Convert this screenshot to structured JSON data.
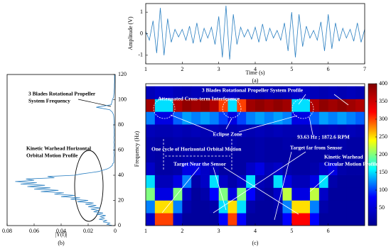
{
  "chart_data": [
    {
      "type": "line",
      "caption": "(a)",
      "xlabel": "Time (s)",
      "ylabel": "Amplitude (V)",
      "color": "#2a7fc1",
      "x": [
        1.0,
        1.1,
        1.2,
        1.3,
        1.4,
        1.5,
        1.6,
        1.7,
        1.8,
        1.9,
        2.0,
        2.1,
        2.2,
        2.3,
        2.4,
        2.5,
        2.6,
        2.7,
        2.8,
        2.9,
        3.0,
        3.1,
        3.2,
        3.3,
        3.4,
        3.5,
        3.6,
        3.7,
        3.8,
        3.9,
        4.0,
        4.1,
        4.2,
        4.3,
        4.4,
        4.5,
        4.6,
        4.7,
        4.8,
        4.9,
        5.0,
        5.1,
        5.2,
        5.3,
        5.4,
        5.5,
        5.6,
        5.7,
        5.8,
        5.9,
        6.0,
        6.1,
        6.2,
        6.3,
        6.4,
        6.5,
        6.6,
        6.7,
        6.8,
        6.9,
        7.0
      ],
      "values": [
        0.1,
        -0.3,
        0.6,
        -0.9,
        1.2,
        -1.0,
        0.7,
        -0.4,
        0.2,
        -0.15,
        0.2,
        -0.3,
        0.35,
        -0.45,
        0.5,
        -0.4,
        0.25,
        -0.2,
        0.3,
        -0.5,
        0.8,
        -1.1,
        1.3,
        -1.2,
        0.9,
        -0.5,
        0.3,
        -0.15,
        0.2,
        -0.25,
        0.3,
        -0.4,
        0.45,
        -0.35,
        0.25,
        -0.2,
        0.15,
        -0.3,
        0.5,
        -0.8,
        1.0,
        -1.1,
        0.9,
        -0.6,
        0.35,
        -0.2,
        0.15,
        -0.3,
        0.55,
        -0.8,
        0.9,
        -0.7,
        0.5,
        -0.35,
        0.25,
        -0.2,
        0.2,
        -0.35,
        0.5,
        -0.4,
        0.2
      ],
      "xlim": [
        1,
        7
      ],
      "xticks": [
        1,
        2,
        3,
        4,
        5,
        6,
        7
      ],
      "ylim": [
        -1.4,
        1.4
      ],
      "yticks": [
        -1,
        0,
        1
      ]
    },
    {
      "type": "line",
      "orientation": "horizontal",
      "caption": "(b)",
      "xlabel": "|Y(f)|",
      "ylabel": "Frequency (Hz)",
      "color": "#2a7fc1",
      "annotations": [
        "3 Blades Rotational Propeller",
        "System Frequency",
        "Kinetic Warhead Horizontal",
        "Orbital Motion Profile"
      ],
      "x": [
        0,
        1,
        2,
        3,
        4,
        5,
        6,
        7,
        8,
        9,
        10,
        11,
        12,
        13,
        14,
        15,
        16,
        17,
        18,
        19,
        20,
        21,
        22,
        23,
        24,
        25,
        26,
        27,
        28,
        29,
        30,
        31,
        32,
        33,
        34,
        35,
        36,
        37,
        38,
        39,
        40,
        41,
        42,
        43,
        44,
        45,
        46,
        47,
        48,
        49,
        50,
        52,
        54,
        56,
        58,
        60,
        62,
        64,
        66,
        68,
        70,
        72,
        74,
        76,
        78,
        80,
        82,
        84,
        86,
        88,
        90,
        92,
        94,
        96,
        98,
        100,
        102,
        104,
        106,
        108,
        110,
        112,
        114,
        116,
        118,
        120
      ],
      "values": [
        0.002,
        0.006,
        0.004,
        0.009,
        0.006,
        0.012,
        0.008,
        0.011,
        0.007,
        0.014,
        0.009,
        0.016,
        0.012,
        0.018,
        0.011,
        0.02,
        0.014,
        0.022,
        0.016,
        0.028,
        0.02,
        0.033,
        0.026,
        0.04,
        0.03,
        0.045,
        0.038,
        0.055,
        0.042,
        0.06,
        0.048,
        0.065,
        0.052,
        0.07,
        0.058,
        0.074,
        0.06,
        0.066,
        0.045,
        0.05,
        0.03,
        0.025,
        0.018,
        0.012,
        0.009,
        0.006,
        0.004,
        0.003,
        0.002,
        0.002,
        0.001,
        0.001,
        0.001,
        0.0008,
        0.001,
        0.0008,
        0.001,
        0.0007,
        0.001,
        0.0008,
        0.001,
        0.0007,
        0.0009,
        0.0008,
        0.001,
        0.0009,
        0.0008,
        0.0009,
        0.001,
        0.0012,
        0.002,
        0.004,
        0.014,
        0.003,
        0.0025,
        0.002,
        0.0012,
        0.001,
        0.0008,
        0.0007,
        0.0006,
        0.0006,
        0.0005,
        0.0005,
        0.0005,
        0.0005
      ],
      "xlim": [
        0.08,
        0
      ],
      "xticks": [
        0.08,
        0.06,
        0.04,
        0.02,
        0
      ],
      "ylim": [
        0,
        120
      ],
      "yticks": [
        0,
        20,
        40,
        60,
        80,
        100,
        120
      ]
    },
    {
      "type": "heatmap",
      "caption": "(c)",
      "annotations": [
        "3 Blades Rotational Propeller System Profile",
        "Attenuated Cross-term Interference",
        "Eclipse Zone",
        "93.63 Hz ; 1872.6 RPM",
        "One cycle of Horizontal Orbital Motion",
        "Target far from Sensor",
        "Target Near the Sensor",
        "Kinetic Warhead",
        "Circular Motion Profile"
      ],
      "colormap": [
        "#00008f",
        "#0000ff",
        "#00ffff",
        "#ffff00",
        "#ff0000",
        "#800000"
      ],
      "x": [
        1.125,
        1.375,
        1.625,
        1.875,
        2.125,
        2.375,
        2.625,
        2.875,
        3.125,
        3.375,
        3.625,
        3.875,
        4.125,
        4.375,
        4.625,
        4.875,
        5.125,
        5.375,
        5.625,
        5.875,
        6.125,
        6.375,
        6.625,
        6.875
      ],
      "y": [
        5,
        15,
        25,
        35,
        45,
        55,
        65,
        75,
        85,
        95,
        105
      ],
      "z": [
        [
          40,
          300,
          300,
          40,
          10,
          10,
          10,
          10,
          80,
          300,
          80,
          10,
          10,
          10,
          10,
          80,
          320,
          320,
          80,
          10,
          10,
          10,
          10,
          10
        ],
        [
          120,
          250,
          250,
          120,
          20,
          10,
          10,
          20,
          150,
          250,
          150,
          20,
          10,
          10,
          20,
          120,
          250,
          250,
          120,
          20,
          10,
          10,
          10,
          10
        ],
        [
          200,
          60,
          60,
          200,
          40,
          10,
          20,
          80,
          200,
          60,
          200,
          80,
          20,
          10,
          40,
          220,
          60,
          60,
          220,
          40,
          10,
          10,
          10,
          10
        ],
        [
          150,
          30,
          30,
          60,
          120,
          20,
          40,
          150,
          40,
          20,
          40,
          150,
          30,
          20,
          150,
          60,
          30,
          30,
          60,
          150,
          20,
          10,
          10,
          10
        ],
        [
          40,
          15,
          15,
          20,
          60,
          60,
          40,
          30,
          15,
          15,
          15,
          40,
          60,
          30,
          40,
          20,
          15,
          15,
          20,
          40,
          60,
          20,
          15,
          15
        ],
        [
          20,
          15,
          15,
          15,
          20,
          15,
          15,
          15,
          15,
          15,
          15,
          15,
          20,
          15,
          15,
          15,
          15,
          15,
          15,
          15,
          20,
          15,
          15,
          15
        ],
        [
          20,
          15,
          15,
          20,
          15,
          15,
          20,
          15,
          15,
          20,
          15,
          15,
          20,
          15,
          15,
          20,
          15,
          15,
          20,
          15,
          15,
          20,
          15,
          15
        ],
        [
          30,
          25,
          25,
          30,
          25,
          30,
          25,
          30,
          25,
          25,
          30,
          25,
          30,
          25,
          30,
          25,
          25,
          25,
          30,
          25,
          30,
          25,
          30,
          25
        ],
        [
          120,
          60,
          60,
          110,
          130,
          120,
          130,
          120,
          100,
          60,
          100,
          120,
          130,
          120,
          130,
          120,
          60,
          60,
          110,
          130,
          120,
          130,
          120,
          110
        ],
        [
          380,
          150,
          150,
          370,
          390,
          380,
          390,
          370,
          300,
          150,
          300,
          380,
          390,
          380,
          390,
          380,
          150,
          150,
          370,
          390,
          380,
          390,
          380,
          370
        ],
        [
          30,
          40,
          40,
          30,
          25,
          30,
          25,
          30,
          30,
          40,
          30,
          30,
          25,
          30,
          25,
          30,
          40,
          40,
          30,
          25,
          30,
          25,
          30,
          25
        ]
      ],
      "xlim": [
        1,
        7
      ],
      "xticks": [
        1,
        2,
        3,
        4,
        5,
        6
      ],
      "ylim": [
        0,
        112
      ],
      "zlim": [
        0,
        400
      ],
      "zticks": [
        50,
        100,
        150,
        200,
        250,
        300,
        350,
        400
      ]
    }
  ]
}
